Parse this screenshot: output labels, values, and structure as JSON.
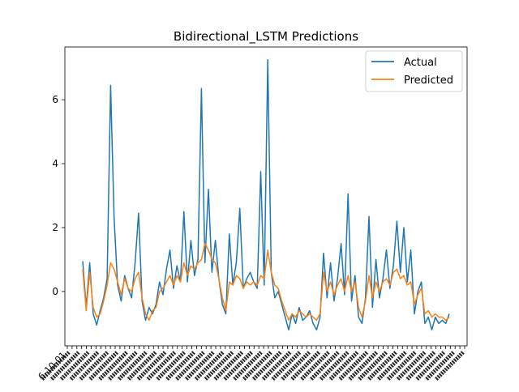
{
  "chart_data": {
    "type": "line",
    "title": "Bidirectional_LSTM Predictions",
    "xlabel": "",
    "ylabel": "",
    "x_axis": "date",
    "x_tick_labels_note_visible": "dense overlapping rotated date labels (illegible)",
    "x_first_tick_label_fragment": "6-10-01",
    "ylim": [
      -1.7,
      7.65
    ],
    "y_ticks": [
      0,
      2,
      4,
      6
    ],
    "y_tick_labels": [
      "0",
      "2",
      "4",
      "6"
    ],
    "grid": false,
    "legend": "top-right",
    "series": [
      {
        "name": "Actual",
        "color": "#1f77b4",
        "values": [
          0.95,
          -0.5,
          0.9,
          -0.7,
          -1.05,
          -0.6,
          -0.2,
          0.4,
          6.45,
          2.3,
          0.2,
          -0.3,
          0.5,
          0.1,
          -0.2,
          0.9,
          2.45,
          -0.3,
          -0.9,
          -0.5,
          -0.7,
          -0.4,
          0.3,
          -0.1,
          0.7,
          1.3,
          0.1,
          0.8,
          0.3,
          2.5,
          0.3,
          1.6,
          0.5,
          1.0,
          6.35,
          0.9,
          3.2,
          0.6,
          1.6,
          0.4,
          -0.4,
          -0.7,
          1.8,
          0.2,
          0.9,
          2.6,
          0.1,
          0.4,
          0.6,
          0.3,
          0.1,
          3.75,
          0.2,
          7.25,
          0.6,
          -0.2,
          0.0,
          -0.4,
          -0.8,
          -1.2,
          -0.7,
          -1.0,
          -0.5,
          -0.9,
          -0.8,
          -0.6,
          -1.0,
          -1.2,
          -0.8,
          1.2,
          -0.2,
          0.9,
          -0.3,
          0.4,
          1.5,
          -0.1,
          3.05,
          -0.3,
          0.5,
          -0.8,
          -1.0,
          -0.2,
          2.35,
          -0.5,
          1.0,
          -0.2,
          0.4,
          1.3,
          0.1,
          0.8,
          2.2,
          0.6,
          2.0,
          0.3,
          1.3,
          -0.7,
          0.0,
          0.3,
          -1.0,
          -0.8,
          -1.2,
          -0.8,
          -1.0,
          -0.9,
          -1.0,
          -0.7
        ]
      },
      {
        "name": "Predicted",
        "color": "#ff7f0e",
        "values": [
          0.7,
          -0.6,
          0.6,
          -0.5,
          -0.8,
          -0.7,
          -0.3,
          0.2,
          0.9,
          0.7,
          0.3,
          -0.1,
          0.4,
          0.1,
          0.0,
          0.4,
          0.6,
          -0.2,
          -0.7,
          -0.9,
          -0.6,
          -0.5,
          0.0,
          0.1,
          0.3,
          0.5,
          0.2,
          0.5,
          0.3,
          0.9,
          0.5,
          0.8,
          0.7,
          0.9,
          1.0,
          1.5,
          1.3,
          1.0,
          0.9,
          0.4,
          -0.2,
          -0.6,
          0.3,
          0.2,
          0.5,
          0.4,
          0.1,
          0.3,
          0.2,
          0.3,
          0.2,
          0.5,
          0.4,
          1.3,
          0.6,
          0.2,
          0.1,
          -0.3,
          -0.6,
          -0.9,
          -0.7,
          -0.8,
          -0.6,
          -0.7,
          -0.8,
          -0.7,
          -0.8,
          -0.9,
          -0.7,
          0.6,
          0.0,
          0.3,
          -0.1,
          0.2,
          0.4,
          0.0,
          0.5,
          0.0,
          0.3,
          -0.5,
          -0.8,
          -0.3,
          0.5,
          -0.2,
          0.3,
          0.0,
          0.3,
          0.4,
          0.2,
          0.6,
          0.7,
          0.4,
          0.5,
          0.2,
          0.3,
          -0.4,
          -0.1,
          0.1,
          -0.7,
          -0.6,
          -0.8,
          -0.7,
          -0.8,
          -0.8,
          -0.9,
          -0.8
        ]
      }
    ]
  }
}
